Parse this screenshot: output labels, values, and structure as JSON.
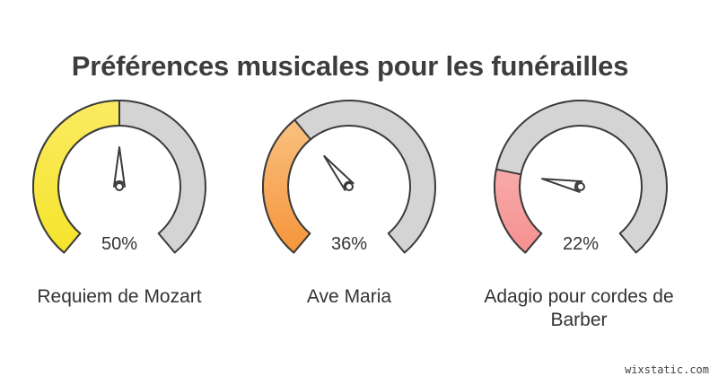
{
  "title": "Préférences musicales pour les funérailles",
  "watermark": "wixstatic.com",
  "chart_data": {
    "type": "gauge",
    "title": "Préférences musicales pour les funérailles",
    "unit": "%",
    "range": [
      0,
      100
    ],
    "items": [
      {
        "label": "Requiem de Mozart",
        "value": 50,
        "value_label": "50%",
        "color_top": "#fbeb62",
        "color_bottom": "#f5e42a"
      },
      {
        "label": "Ave Maria",
        "value": 36,
        "value_label": "36%",
        "color_top": "#f9c080",
        "color_bottom": "#f6953a"
      },
      {
        "label": "Adagio pour cordes de Barber",
        "value": 22,
        "value_label": "22%",
        "color_top": "#f9aaaa",
        "color_bottom": "#f59090"
      }
    ],
    "track_color": "#d4d4d4",
    "stroke_color": "#3b3b3b"
  }
}
